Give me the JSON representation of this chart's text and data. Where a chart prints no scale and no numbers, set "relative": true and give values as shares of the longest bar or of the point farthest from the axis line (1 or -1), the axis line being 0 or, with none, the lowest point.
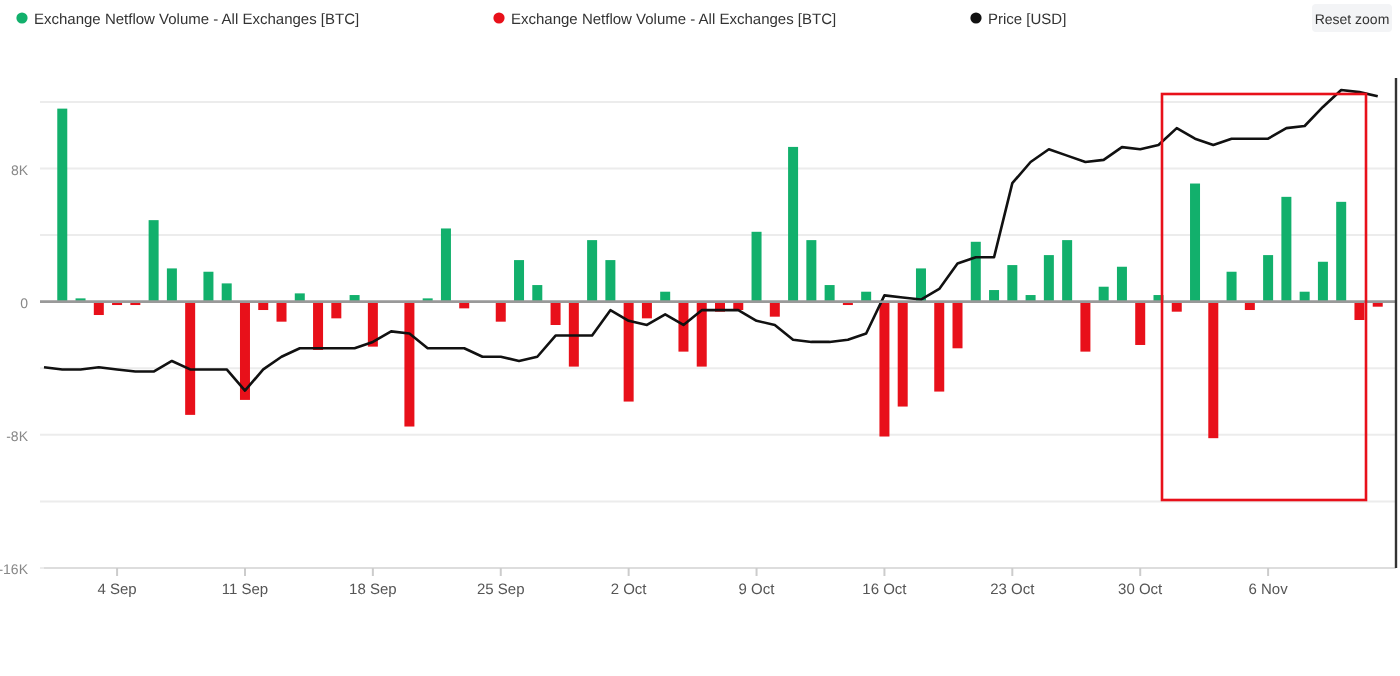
{
  "chart_data": [
    {
      "type": "bar",
      "x": [
        "--09-01",
        "--09-02",
        "--09-03",
        "--09-04",
        "--09-05",
        "--09-06",
        "--09-07",
        "--09-08",
        "--09-09",
        "--09-10",
        "--09-11",
        "--09-12",
        "--09-13",
        "--09-14",
        "--09-15",
        "--09-16",
        "--09-17",
        "--09-18",
        "--09-19",
        "--09-20",
        "--09-21",
        "--09-22",
        "--09-23",
        "--09-24",
        "--09-25",
        "--09-26",
        "--09-27",
        "--09-28",
        "--09-29",
        "--09-30",
        "--10-01",
        "--10-02",
        "--10-03",
        "--10-04",
        "--10-05",
        "--10-06",
        "--10-07",
        "--10-08",
        "--10-09",
        "--10-10",
        "--10-11",
        "--10-12",
        "--10-13",
        "--10-14",
        "--10-15",
        "--10-16",
        "--10-17",
        "--10-18",
        "--10-19",
        "--10-20",
        "--10-21",
        "--10-22",
        "--10-23",
        "--10-24",
        "--10-25",
        "--10-26",
        "--10-27",
        "--10-28",
        "--10-29",
        "--10-30",
        "--10-31",
        "--11-01",
        "--11-02",
        "--11-03",
        "--11-04",
        "--11-05",
        "--11-06",
        "--11-07",
        "--11-08",
        "--11-09",
        "--11-10",
        "--11-11",
        "--11-12"
      ],
      "series": [
        {
          "name": "Exchange Netflow Volume - All Exchanges [BTC]",
          "color": "#12b06c",
          "values": [
            11600,
            200,
            null,
            null,
            null,
            4900,
            2000,
            null,
            1800,
            1100,
            null,
            null,
            null,
            500,
            null,
            null,
            400,
            null,
            null,
            null,
            200,
            4400,
            null,
            null,
            null,
            2500,
            1000,
            null,
            null,
            3700,
            2500,
            null,
            null,
            600,
            null,
            null,
            null,
            null,
            4200,
            null,
            9300,
            3700,
            1000,
            null,
            600,
            null,
            null,
            2000,
            null,
            null,
            3600,
            700,
            2200,
            400,
            2800,
            3700,
            null,
            900,
            2100,
            null,
            400,
            null,
            7100,
            null,
            1800,
            null,
            2800,
            6300,
            600,
            2400,
            6000,
            null,
            null
          ]
        },
        {
          "name": "Exchange Netflow Volume - All Exchanges [BTC]",
          "color": "#e8101a",
          "values": [
            null,
            null,
            -800,
            -200,
            -200,
            null,
            null,
            -6800,
            null,
            null,
            -5900,
            -500,
            -1200,
            null,
            -2900,
            -1000,
            null,
            -2700,
            null,
            -7500,
            null,
            null,
            -400,
            null,
            -1200,
            null,
            null,
            -1400,
            -3900,
            null,
            null,
            -6000,
            -1000,
            null,
            -3000,
            -3900,
            -600,
            -500,
            null,
            -900,
            null,
            null,
            null,
            -200,
            null,
            -8100,
            -6300,
            null,
            -5400,
            -2800,
            null,
            null,
            null,
            null,
            null,
            null,
            -3000,
            null,
            null,
            -2600,
            null,
            -600,
            null,
            -8200,
            null,
            -500,
            null,
            null,
            null,
            null,
            null,
            -1100,
            -300
          ]
        }
      ],
      "xlim": [
        "--08-31",
        "--11-13"
      ],
      "xticks": [
        {
          "value": "--09-04",
          "label": "4 Sep"
        },
        {
          "value": "--09-11",
          "label": "11 Sep"
        },
        {
          "value": "--09-18",
          "label": "18 Sep"
        },
        {
          "value": "--09-25",
          "label": "25 Sep"
        },
        {
          "value": "--10-02",
          "label": "2 Oct"
        },
        {
          "value": "--10-09",
          "label": "9 Oct"
        },
        {
          "value": "--10-16",
          "label": "16 Oct"
        },
        {
          "value": "--10-23",
          "label": "23 Oct"
        },
        {
          "value": "--10-30",
          "label": "30 Oct"
        },
        {
          "value": "--11-06",
          "label": "6 Nov"
        }
      ],
      "ylim": [
        -16000,
        13200
      ],
      "yticks": [
        {
          "value": 12000,
          "label": null
        },
        {
          "value": 8000,
          "label": "8K"
        },
        {
          "value": 4000,
          "label": null
        },
        0,
        {
          "value": -4000,
          "label": null
        },
        {
          "value": -8000,
          "label": "-8K"
        },
        {
          "value": -12000,
          "label": null
        },
        {
          "value": -16000,
          "label": "-16K"
        }
      ],
      "grid": "y",
      "legend": "top left",
      "annotations": [
        "Reset zoom"
      ]
    },
    {
      "type": "line",
      "relative": true,
      "legend": "top",
      "categories": [
        null,
        null,
        null,
        null,
        null,
        null,
        null,
        null,
        null,
        null,
        null,
        null,
        null,
        null,
        null,
        null,
        null,
        null,
        null,
        null,
        null,
        null,
        null,
        null,
        null,
        null,
        null,
        null,
        null,
        null,
        null,
        null,
        null,
        null,
        null,
        null,
        null,
        null,
        null,
        null,
        null,
        null,
        null,
        null,
        null,
        null,
        null,
        null,
        null,
        null,
        null,
        null,
        null,
        null,
        null,
        null,
        null,
        null,
        null,
        null,
        null,
        null,
        null,
        null,
        null,
        null,
        null,
        null,
        null,
        null,
        null,
        null,
        null,
        null
      ],
      "series": [
        {
          "name": "Price [USD]",
          "color": "#111111",
          "values": [
            -0.31,
            -0.32,
            -0.32,
            -0.31,
            -0.32,
            -0.33,
            -0.33,
            -0.28,
            -0.32,
            -0.32,
            -0.32,
            -0.42,
            -0.32,
            -0.26,
            -0.22,
            -0.22,
            -0.22,
            -0.22,
            -0.19,
            -0.14,
            -0.15,
            -0.22,
            -0.22,
            -0.22,
            -0.26,
            -0.26,
            -0.28,
            -0.26,
            -0.16,
            -0.16,
            -0.16,
            -0.04,
            -0.09,
            -0.11,
            -0.06,
            -0.11,
            -0.04,
            -0.04,
            -0.04,
            -0.09,
            -0.11,
            -0.18,
            -0.19,
            -0.19,
            -0.18,
            -0.15,
            0.03,
            0.02,
            0.01,
            0.06,
            0.18,
            0.21,
            0.21,
            0.56,
            0.66,
            0.72,
            0.69,
            0.66,
            0.67,
            0.73,
            0.72,
            0.74,
            0.82,
            0.77,
            0.74,
            0.77,
            0.77,
            0.77,
            0.82,
            0.83,
            0.92,
            1,
            0.99,
            0.97
          ]
        }
      ]
    }
  ]
}
